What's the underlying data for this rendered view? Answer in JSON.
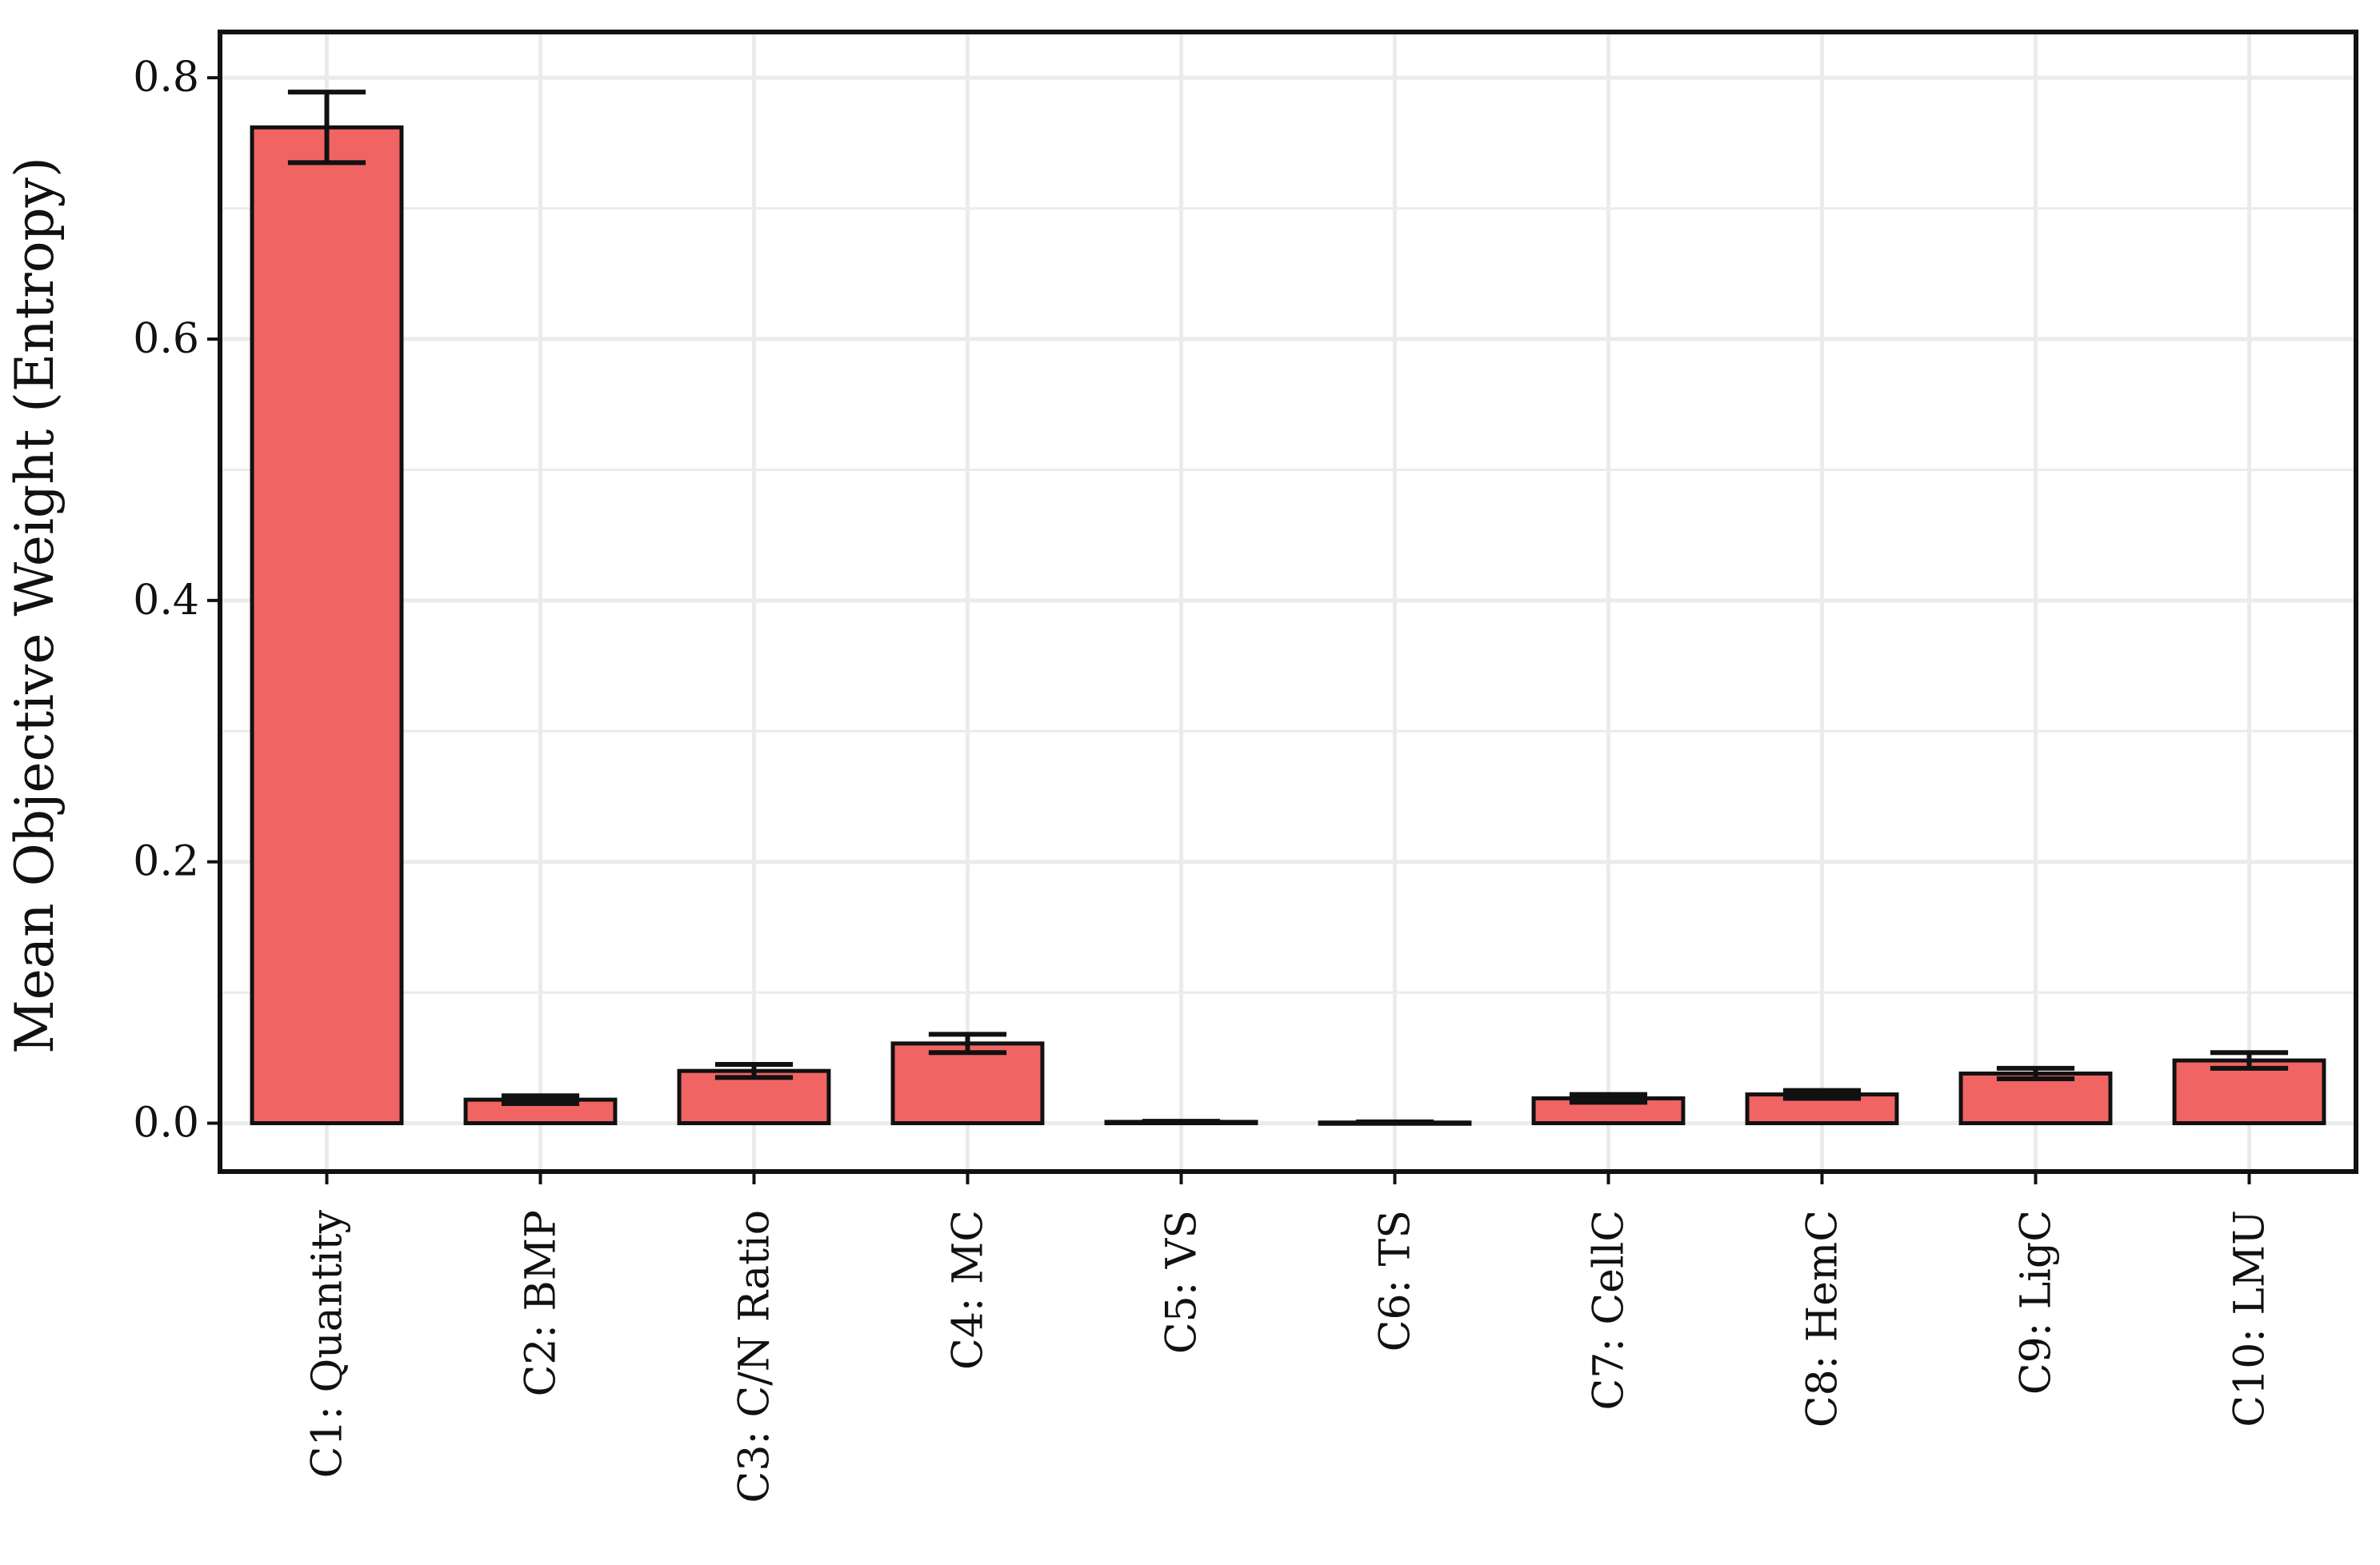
{
  "chart_data": {
    "type": "bar",
    "title": "",
    "xlabel": "",
    "ylabel": "Mean Objective Weight (Entropy)",
    "ylim": [
      -0.037,
      0.835
    ],
    "yticks": [
      "0.0",
      "0.2",
      "0.4",
      "0.6",
      "0.8"
    ],
    "ytick_values": [
      0.0,
      0.2,
      0.4,
      0.6,
      0.8
    ],
    "grid": true,
    "legend": "none",
    "categories": [
      "C1: Quantity",
      "C2: BMP",
      "C3: C/N Ratio",
      "C4: MC",
      "C5: VS",
      "C6: TS",
      "C7: CellC",
      "C8: HemC",
      "C9: LigC",
      "C10: LMU"
    ],
    "values": [
      0.762,
      0.018,
      0.04,
      0.061,
      0.001,
      0.0005,
      0.019,
      0.022,
      0.038,
      0.048
    ],
    "error": [
      0.027,
      0.003,
      0.005,
      0.007,
      0.0005,
      0.0005,
      0.003,
      0.003,
      0.004,
      0.006
    ],
    "colors": {
      "bar": "#f06564",
      "edge": "#111111",
      "grid": "#ebebeb",
      "frame": "#111111"
    }
  }
}
